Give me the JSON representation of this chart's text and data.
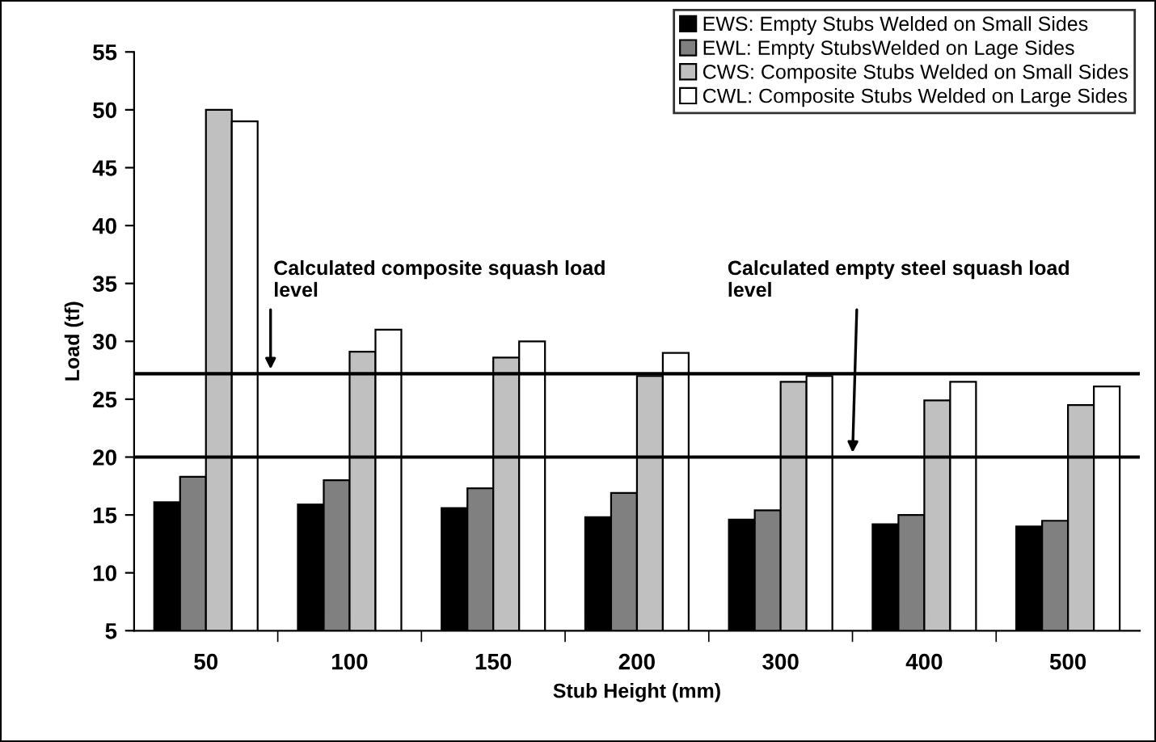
{
  "chart_data": {
    "type": "bar",
    "xlabel": "Stub Height (mm)",
    "ylabel": "Load (tf)",
    "categories": [
      "50",
      "100",
      "150",
      "200",
      "300",
      "400",
      "500"
    ],
    "series": [
      {
        "name": "EWS: Empty Stubs Welded on Small Sides",
        "color": "#000000",
        "values": [
          16.1,
          15.9,
          15.6,
          14.8,
          14.6,
          14.2,
          14.0
        ]
      },
      {
        "name": "EWL: Empty StubsWelded on Lage Sides",
        "color": "#808080",
        "values": [
          18.3,
          18.0,
          17.3,
          16.9,
          15.4,
          15.0,
          14.5
        ]
      },
      {
        "name": "CWS: Composite Stubs Welded on Small Sides",
        "color": "#c0c0c0",
        "values": [
          50.0,
          29.1,
          28.6,
          27.0,
          26.5,
          24.9,
          24.5
        ]
      },
      {
        "name": "CWL: Composite Stubs Welded on Large Sides",
        "color": "#ffffff",
        "values": [
          49.0,
          31.0,
          30.0,
          29.0,
          27.0,
          26.5,
          26.1
        ]
      }
    ],
    "ylim": [
      5,
      55
    ],
    "yticks": [
      5,
      10,
      15,
      20,
      25,
      30,
      35,
      40,
      45,
      50,
      55
    ],
    "grid": false,
    "legend": "top right",
    "ref_lines": [
      {
        "axis": "y",
        "value": 27.2,
        "label": "Calculated composite squash load level",
        "color": "#000000"
      },
      {
        "axis": "y",
        "value": 20,
        "label": "Calculated empty steel squash load level",
        "color": "#000000"
      }
    ]
  }
}
